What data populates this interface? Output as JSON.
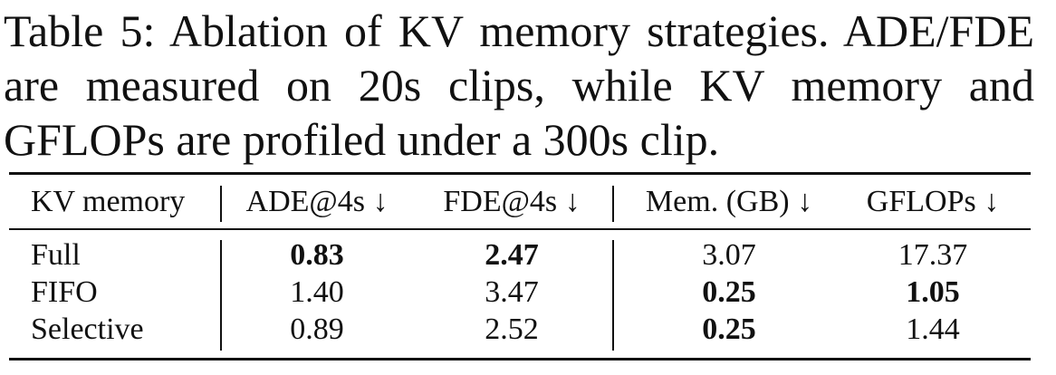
{
  "caption": {
    "label": "Table 5:",
    "text": "Ablation of KV memory strategies. ADE/FDE are measured on 20s clips, while KV memory and GFLOPs are profiled under a 300s clip."
  },
  "table": {
    "header": [
      "KV memory",
      "ADE@4s ↓",
      "FDE@4s ↓",
      "Mem. (GB) ↓",
      "GFLOPs ↓"
    ],
    "rows": [
      [
        {
          "text": "Full",
          "bold": false
        },
        {
          "text": "0.83",
          "bold": true
        },
        {
          "text": "2.47",
          "bold": true
        },
        {
          "text": "3.07",
          "bold": false
        },
        {
          "text": "17.37",
          "bold": false
        }
      ],
      [
        {
          "text": "FIFO",
          "bold": false
        },
        {
          "text": "1.40",
          "bold": false
        },
        {
          "text": "3.47",
          "bold": false
        },
        {
          "text": "0.25",
          "bold": true
        },
        {
          "text": "1.05",
          "bold": true
        }
      ],
      [
        {
          "text": "Selective",
          "bold": false
        },
        {
          "text": "0.89",
          "bold": false
        },
        {
          "text": "2.52",
          "bold": false
        },
        {
          "text": "0.25",
          "bold": true
        },
        {
          "text": "1.44",
          "bold": false
        }
      ]
    ]
  }
}
